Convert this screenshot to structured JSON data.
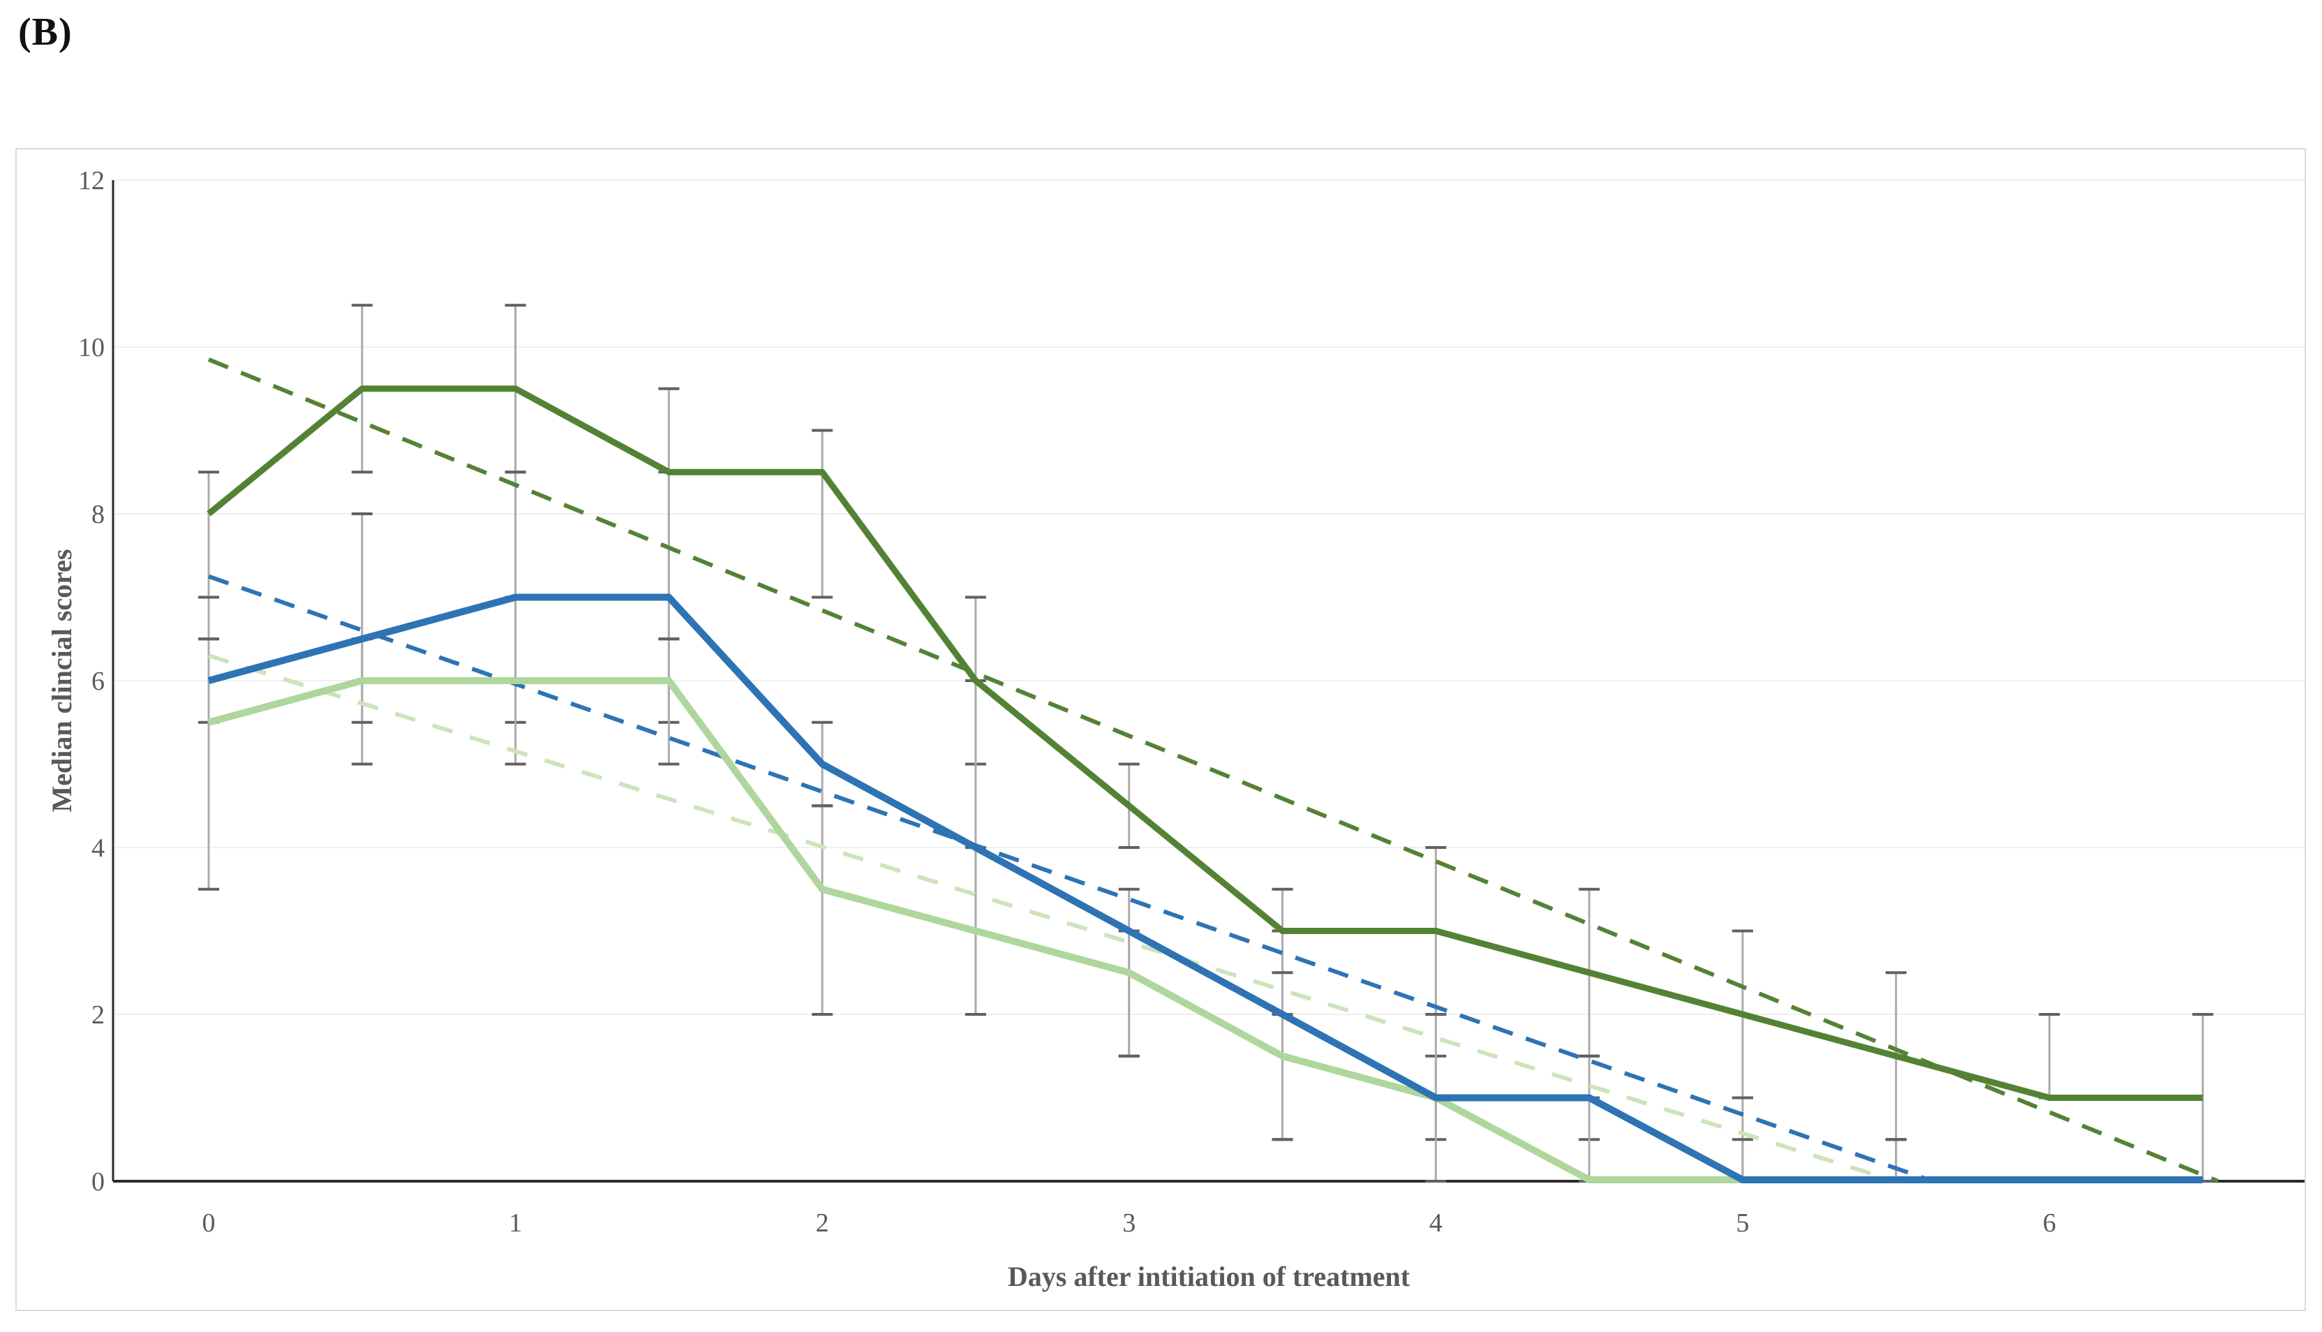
{
  "figure_label": "(B)",
  "chart_data": {
    "type": "line",
    "title": "",
    "xlabel": "Days after intitiation of treatment",
    "ylabel": "Median clincial scores",
    "x_tick_labels": [
      "0",
      "1",
      "2",
      "3",
      "4",
      "5",
      "6"
    ],
    "x_tick_values": [
      0,
      1,
      2,
      3,
      4,
      5,
      6
    ],
    "y_tick_labels": [
      "0",
      "2",
      "4",
      "6",
      "8",
      "10",
      "12"
    ],
    "y_tick_values": [
      0,
      2,
      4,
      6,
      8,
      10,
      12
    ],
    "ylim": [
      0,
      12
    ],
    "xlim": [
      -0.31,
      6.83
    ],
    "grid": "horizontal light gray, every 2 units",
    "legend_position": "none",
    "x": [
      0,
      0.5,
      1,
      1.5,
      2,
      2.5,
      3,
      3.5,
      4,
      4.5,
      5,
      5.5,
      6,
      6.5
    ],
    "series": [
      {
        "name": "dark-green-group",
        "color": "#548235",
        "line_style": "solid",
        "values": [
          8,
          9.5,
          9.5,
          8.5,
          8.5,
          6,
          4.5,
          3,
          3,
          2.5,
          2,
          1.5,
          1,
          1
        ],
        "err_lo": [
          6.5,
          8.5,
          8.5,
          6.5,
          7,
          5,
          4,
          2,
          2,
          1.5,
          1,
          0.5,
          1,
          0
        ],
        "err_hi": [
          8.5,
          10.5,
          10.5,
          9.5,
          9,
          7,
          5,
          3.5,
          4,
          3.5,
          3,
          2.5,
          2,
          2
        ]
      },
      {
        "name": "blue-group",
        "color": "#2E73B4",
        "line_style": "solid",
        "values": [
          6,
          6.5,
          7,
          7,
          5,
          4,
          3,
          2,
          1,
          1,
          0,
          0,
          0,
          0
        ],
        "err_lo": [
          5.5,
          5,
          5.5,
          5.5,
          4.5,
          2,
          1.5,
          0.5,
          0.5,
          0.5,
          0,
          0,
          0,
          0
        ],
        "err_hi": [
          7,
          8,
          8.5,
          8.5,
          5.5,
          6,
          3.5,
          3,
          1.5,
          1.5,
          1,
          0.5,
          0,
          0
        ]
      },
      {
        "name": "light-green-group",
        "color": "#AFD69C",
        "line_style": "solid",
        "values": [
          5.5,
          6,
          6,
          6,
          3.5,
          3,
          2.5,
          1.5,
          1,
          0,
          0,
          0,
          0,
          0
        ],
        "err_lo": [
          3.5,
          5.5,
          5,
          5,
          2,
          2,
          1.5,
          0.5,
          0,
          0,
          0,
          0,
          0,
          0
        ],
        "err_hi": [
          6.5,
          6.5,
          7,
          6.5,
          4.5,
          4,
          3,
          2.5,
          2,
          1,
          0.5,
          0.5,
          0,
          0
        ]
      }
    ],
    "trendlines": [
      {
        "name": "dark-green-trend",
        "color": "#548235",
        "line_style": "dashed",
        "start": {
          "x": 0,
          "y": 9.85
        },
        "end": {
          "x": 6.55,
          "y": 0
        }
      },
      {
        "name": "blue-trend",
        "color": "#2E73B4",
        "line_style": "dashed",
        "start": {
          "x": 0,
          "y": 7.25
        },
        "end": {
          "x": 5.62,
          "y": 0
        }
      },
      {
        "name": "light-green-trend",
        "color": "#CDE3BC",
        "line_style": "dashed",
        "start": {
          "x": 0,
          "y": 6.3
        },
        "end": {
          "x": 5.5,
          "y": 0
        }
      }
    ],
    "style": {
      "error_bar_line_color": "#ababab",
      "error_bar_cap_color": "#616161",
      "grid_color": "#f0f0f0",
      "axis_color": "#2b2b2b",
      "tick_text_color": "#595959",
      "axis_title_color": "#595959",
      "frame_border_color": "#d9d9d9"
    }
  }
}
